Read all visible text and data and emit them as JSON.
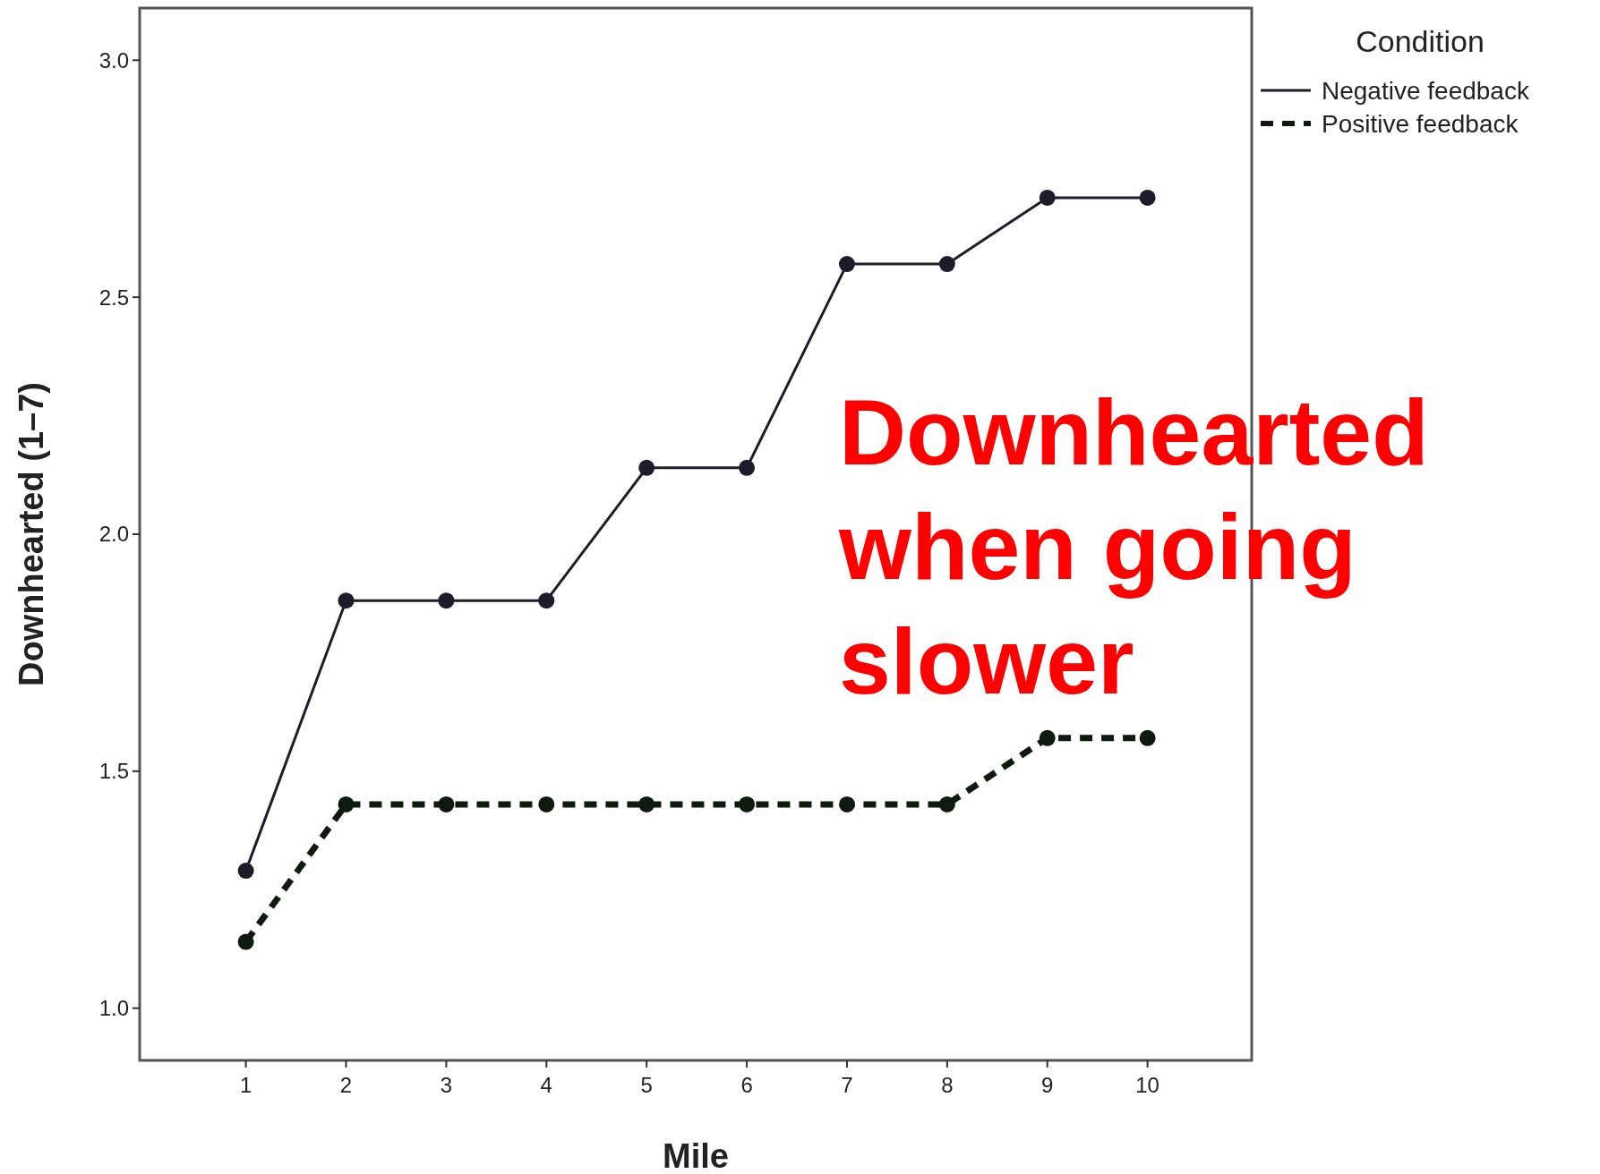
{
  "chart_data": {
    "type": "line",
    "xlabel": "Mile",
    "ylabel": "Downhearted (1–7)",
    "legend_title": "Condition",
    "legend": "top right",
    "marker": "circle",
    "grid": false,
    "x": [
      1,
      2,
      3,
      4,
      5,
      6,
      7,
      8,
      9,
      10
    ],
    "xlim": [
      -0.06,
      11.04
    ],
    "xticks": [
      1,
      2,
      3,
      4,
      5,
      6,
      7,
      8,
      9,
      10
    ],
    "ylim": [
      0.89,
      3.11
    ],
    "yticks": [
      {
        "value": 1,
        "label": "1.0"
      },
      {
        "value": 1.5,
        "label": "1.5"
      },
      {
        "value": 2,
        "label": "2.0"
      },
      {
        "value": 2.5,
        "label": "2.5"
      },
      {
        "value": 3,
        "label": "3.0"
      }
    ],
    "series": [
      {
        "name": "Negative feedback",
        "color": "#1c1c2a",
        "line_style": "solid",
        "values": [
          1.29,
          1.86,
          1.86,
          1.86,
          2.14,
          2.14,
          2.57,
          2.57,
          2.71,
          2.71
        ]
      },
      {
        "name": "Positive feedback",
        "color": "#0d1a0d",
        "line_style": "dashed",
        "values": [
          1.14,
          1.43,
          1.43,
          1.43,
          1.43,
          1.43,
          1.43,
          1.43,
          1.57,
          1.57
        ]
      }
    ],
    "annotations": [
      "Downhearted when going slower"
    ]
  }
}
